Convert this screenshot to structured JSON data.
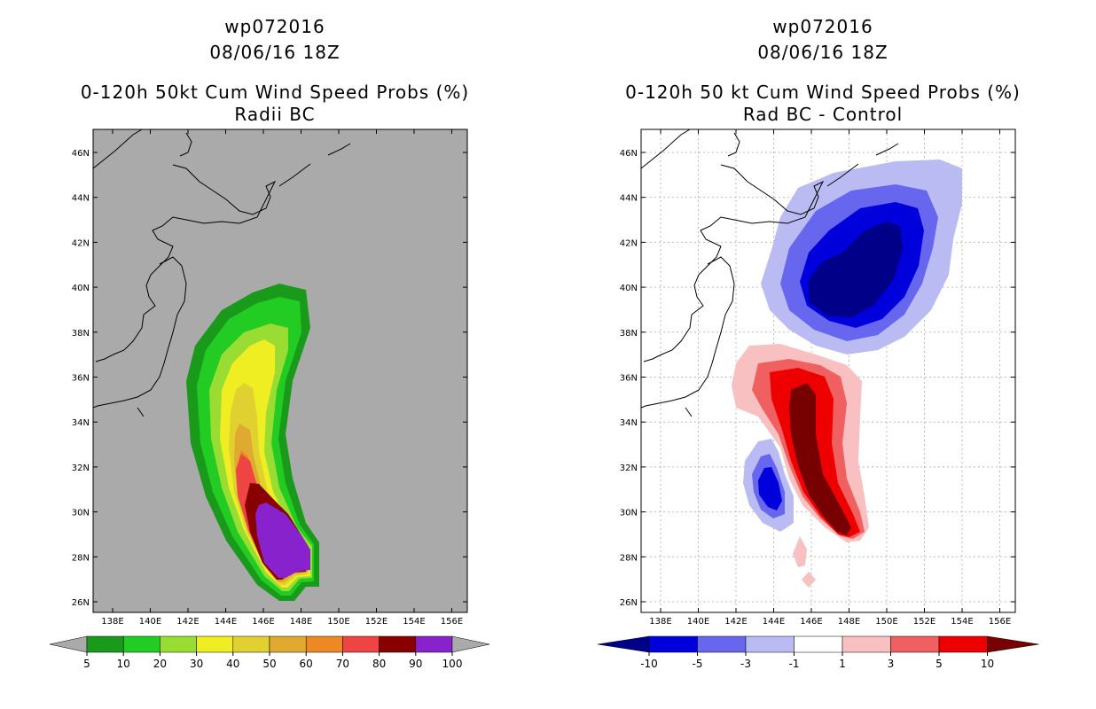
{
  "left_panel": {
    "storm": "wp072016",
    "datetime": "08/06/16 18Z",
    "title": "0-120h 50kt Cum Wind Speed Probs (%)",
    "subtitle": "Radii BC"
  },
  "right_panel": {
    "storm": "wp072016",
    "datetime": "08/06/16 18Z",
    "title": "0-120h 50 kt Cum Wind Speed Probs (%)",
    "subtitle": "Rad BC - Control"
  },
  "lat_labels": [
    "46N",
    "44N",
    "42N",
    "40N",
    "38N",
    "36N",
    "34N",
    "32N",
    "30N",
    "28N",
    "26N"
  ],
  "lon_labels": [
    "138E",
    "140E",
    "142E",
    "144E",
    "146E",
    "148E",
    "150E",
    "152E",
    "154E",
    "156E"
  ],
  "left_colorbar": {
    "labels": [
      "5",
      "10",
      "20",
      "30",
      "40",
      "50",
      "60",
      "70",
      "80",
      "90",
      "100"
    ],
    "colors": [
      "#1a9a1a",
      "#22cc22",
      "#99dd33",
      "#eeee22",
      "#e0d030",
      "#e0aa30",
      "#ee8822",
      "#ee4444",
      "#880000",
      "#8822cc"
    ],
    "end_color": "#aaaaaa"
  },
  "right_colorbar": {
    "labels": [
      "-10",
      "-5",
      "-3",
      "-1",
      "1",
      "3",
      "5",
      "10"
    ],
    "colors": [
      "#0000dd",
      "#6666ee",
      "#bbbbf4",
      "#ffffff",
      "#f8c0c0",
      "#f06060",
      "#ee0000"
    ],
    "low_color": "#000088",
    "high_color": "#770000"
  }
}
